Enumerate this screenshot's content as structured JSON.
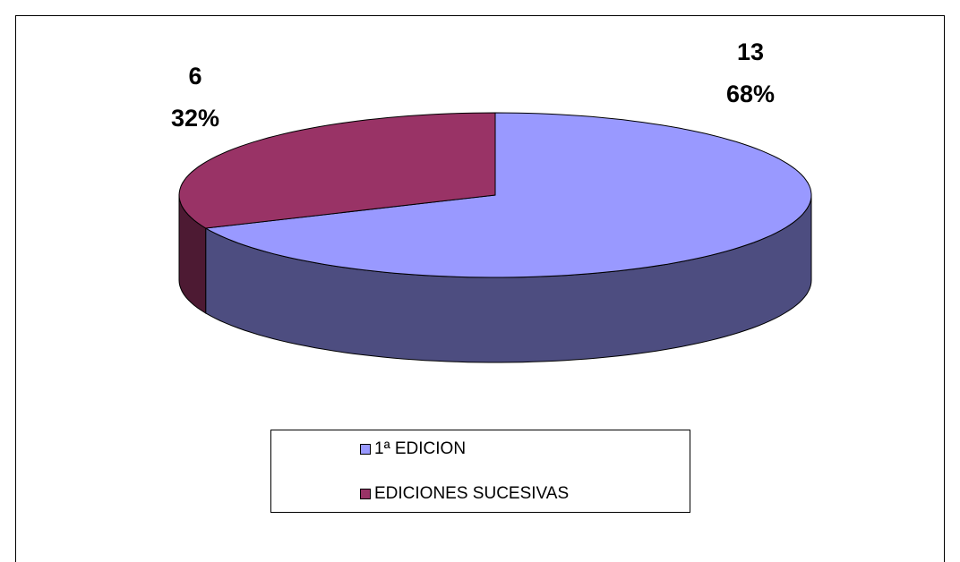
{
  "chart_data": {
    "type": "pie3d",
    "categories": [
      "1ª EDICION",
      "EDICIONES SUCESIVAS"
    ],
    "values": [
      13,
      6
    ],
    "percent_labels": [
      "68%",
      "32%"
    ],
    "series_colors": [
      "#9999ff",
      "#993366"
    ],
    "side_colors": [
      "#4d4d80",
      "#4d1a33"
    ],
    "legend": "bottom"
  }
}
